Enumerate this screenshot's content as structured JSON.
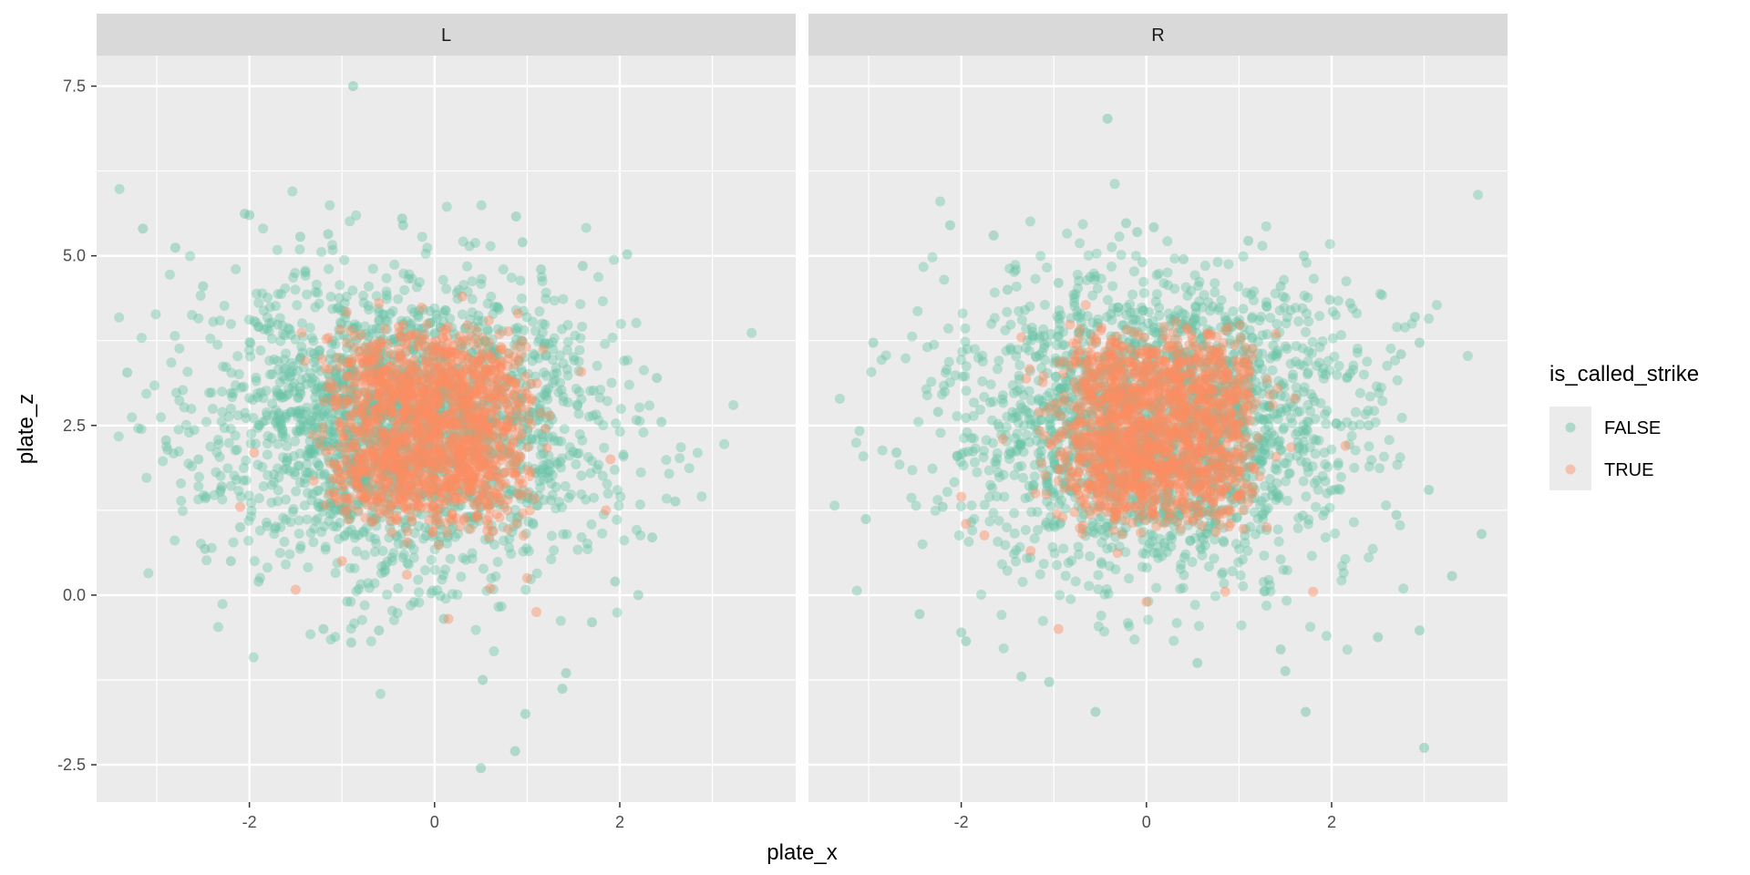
{
  "chart_data": {
    "type": "scatter",
    "facets": [
      "L",
      "R"
    ],
    "x_label": "plate_x",
    "y_label": "plate_z",
    "x_ticks": [
      -2,
      0,
      2
    ],
    "y_ticks": [
      -2.5,
      0.0,
      2.5,
      5.0,
      7.5
    ],
    "xlim": [
      -3.65,
      3.9
    ],
    "ylim": [
      -3.05,
      7.95
    ],
    "grid": true,
    "legend": {
      "title": "is_called_strike",
      "position": "right",
      "entries": [
        {
          "label": "FALSE",
          "color": "#66c2a5"
        },
        {
          "label": "TRUE",
          "color": "#fc8d62"
        }
      ]
    },
    "colors": {
      "FALSE": "#66c2a5",
      "TRUE": "#fc8d62",
      "panel_bg": "#ebebeb",
      "strip_bg": "#d9d9d9",
      "grid": "#ffffff"
    },
    "series": [
      {
        "facet": "L",
        "name": "FALSE",
        "points": [
          [
            -0.88,
            7.5
          ],
          [
            -3.32,
            3.28
          ],
          [
            -3.15,
            5.4
          ],
          [
            -2.8,
            5.12
          ],
          [
            -2.05,
            5.62
          ],
          [
            -2.0,
            5.6
          ],
          [
            -0.35,
            5.55
          ],
          [
            -0.34,
            5.45
          ],
          [
            0.88,
            5.58
          ],
          [
            0.95,
            5.2
          ],
          [
            -1.15,
            5.32
          ],
          [
            -1.45,
            5.28
          ],
          [
            -2.5,
            4.55
          ],
          [
            -2.9,
            2.28
          ],
          [
            -2.55,
            2.0
          ],
          [
            -2.48,
            0.68
          ],
          [
            -2.2,
            0.5
          ],
          [
            2.08,
            5.02
          ],
          [
            1.6,
            4.85
          ],
          [
            1.15,
            4.8
          ],
          [
            2.4,
            3.2
          ],
          [
            2.45,
            2.55
          ],
          [
            2.6,
            1.38
          ],
          [
            2.35,
            0.85
          ],
          [
            2.2,
            0.0
          ],
          [
            1.42,
            -1.15
          ],
          [
            1.38,
            -1.38
          ],
          [
            0.98,
            -1.75
          ],
          [
            0.87,
            -2.3
          ],
          [
            0.5,
            -2.55
          ],
          [
            0.52,
            -1.25
          ],
          [
            -0.9,
            -0.7
          ],
          [
            -1.2,
            -0.5
          ],
          [
            -0.6,
            -0.52
          ],
          [
            0.1,
            -0.35
          ],
          [
            1.7,
            -0.4
          ],
          [
            1.95,
            0.2
          ],
          [
            -1.9,
            0.2
          ],
          [
            -2.1,
            1.0
          ],
          [
            -2.3,
            1.6
          ]
        ]
      },
      {
        "facet": "L",
        "name": "TRUE",
        "points": [
          [
            -1.5,
            0.08
          ],
          [
            -0.3,
            0.3
          ],
          [
            0.15,
            -0.35
          ],
          [
            1.1,
            -0.25
          ],
          [
            1.85,
            1.25
          ],
          [
            -2.1,
            1.3
          ],
          [
            0.9,
            4.15
          ],
          [
            -0.6,
            4.3
          ],
          [
            0.3,
            4.4
          ],
          [
            1.0,
            0.25
          ],
          [
            -1.0,
            0.5
          ],
          [
            1.9,
            2.0
          ],
          [
            -1.95,
            2.1
          ],
          [
            0.6,
            0.1
          ],
          [
            -0.9,
            3.9
          ]
        ]
      },
      {
        "facet": "R",
        "name": "FALSE",
        "points": [
          [
            -0.42,
            7.02
          ],
          [
            -2.12,
            5.45
          ],
          [
            -1.65,
            5.3
          ],
          [
            -0.1,
            5.35
          ],
          [
            -0.22,
            5.48
          ],
          [
            0.08,
            5.42
          ],
          [
            1.1,
            5.22
          ],
          [
            1.45,
            4.55
          ],
          [
            1.98,
            4.35
          ],
          [
            2.2,
            4.3
          ],
          [
            2.9,
            4.1
          ],
          [
            2.95,
            3.72
          ],
          [
            2.75,
            3.55
          ],
          [
            -2.95,
            3.72
          ],
          [
            -2.7,
            2.1
          ],
          [
            -3.03,
            1.12
          ],
          [
            -2.45,
            -0.28
          ],
          [
            -2.0,
            -0.55
          ],
          [
            -1.95,
            -0.68
          ],
          [
            -1.35,
            -1.2
          ],
          [
            -1.05,
            -1.28
          ],
          [
            -0.55,
            -1.72
          ],
          [
            0.55,
            -1.0
          ],
          [
            1.5,
            -1.12
          ],
          [
            1.45,
            -0.8
          ],
          [
            1.72,
            -1.72
          ],
          [
            2.5,
            -0.62
          ],
          [
            2.95,
            -0.52
          ],
          [
            3.0,
            -2.25
          ],
          [
            3.3,
            0.28
          ],
          [
            3.62,
            0.9
          ],
          [
            3.05,
            1.55
          ],
          [
            2.7,
            1.18
          ],
          [
            -2.2,
            1.3
          ],
          [
            -2.25,
            2.7
          ],
          [
            2.4,
            2.5
          ],
          [
            -1.5,
            4.5
          ],
          [
            0.4,
            4.95
          ],
          [
            -0.95,
            4.6
          ],
          [
            1.7,
            5.0
          ]
        ]
      },
      {
        "facet": "R",
        "name": "TRUE",
        "points": [
          [
            -2.0,
            1.45
          ],
          [
            -1.95,
            1.05
          ],
          [
            -1.75,
            0.88
          ],
          [
            -1.25,
            0.65
          ],
          [
            -0.95,
            -0.5
          ],
          [
            0.0,
            -0.1
          ],
          [
            0.85,
            0.05
          ],
          [
            1.8,
            0.05
          ],
          [
            2.15,
            2.2
          ],
          [
            1.4,
            3.85
          ],
          [
            -1.55,
            2.3
          ],
          [
            -1.2,
            1.5
          ],
          [
            1.3,
            1.0
          ],
          [
            -1.35,
            3.8
          ],
          [
            1.6,
            2.9
          ]
        ]
      }
    ]
  }
}
